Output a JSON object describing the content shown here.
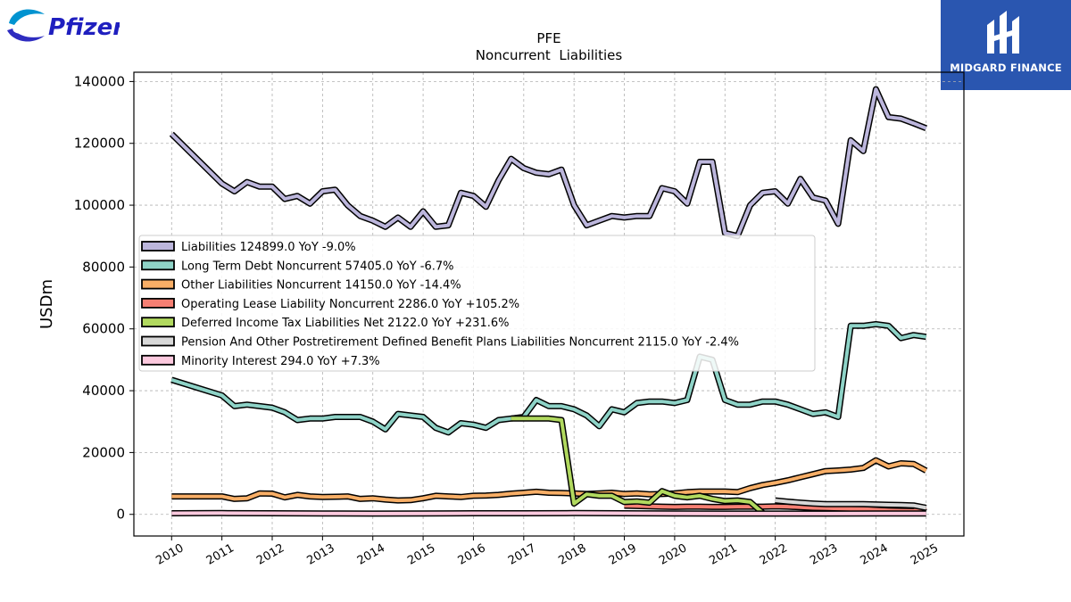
{
  "brand": {
    "company_logo_text": "Pfizer",
    "partner_logo_text": "MIDGARD FINANCE"
  },
  "chart_data": {
    "type": "line",
    "title": "PFE",
    "subtitle": "Noncurrent  Liabilities",
    "xlabel": "",
    "ylabel": "USDm",
    "xlim": [
      2009.25,
      2025.75
    ],
    "ylim": [
      -7000,
      143000
    ],
    "grid": true,
    "legend_position": "center-left",
    "x_ticks": [
      2010,
      2011,
      2012,
      2013,
      2014,
      2015,
      2016,
      2017,
      2018,
      2019,
      2020,
      2021,
      2022,
      2023,
      2024,
      2025
    ],
    "y_ticks": [
      0,
      20000,
      40000,
      60000,
      80000,
      100000,
      120000,
      140000
    ],
    "series": [
      {
        "name": "Liabilities  124899.0 YoY -9.0%",
        "color": "#bcb6dc",
        "points": [
          [
            2010.0,
            123000
          ],
          [
            2011.0,
            107000
          ],
          [
            2011.25,
            104500
          ],
          [
            2011.5,
            107500
          ],
          [
            2011.75,
            106000
          ],
          [
            2012.0,
            106000
          ],
          [
            2012.25,
            102000
          ],
          [
            2012.5,
            103000
          ],
          [
            2012.75,
            100500
          ],
          [
            2013.0,
            104500
          ],
          [
            2013.25,
            105000
          ],
          [
            2013.5,
            100000
          ],
          [
            2013.75,
            96500
          ],
          [
            2014.0,
            95000
          ],
          [
            2014.25,
            93000
          ],
          [
            2014.5,
            96000
          ],
          [
            2014.75,
            93000
          ],
          [
            2015.0,
            98000
          ],
          [
            2015.25,
            93000
          ],
          [
            2015.5,
            93500
          ],
          [
            2015.75,
            104000
          ],
          [
            2016.0,
            103000
          ],
          [
            2016.25,
            99500
          ],
          [
            2016.5,
            108000
          ],
          [
            2016.75,
            115000
          ],
          [
            2017.0,
            112000
          ],
          [
            2017.25,
            110500
          ],
          [
            2017.5,
            110000
          ],
          [
            2017.75,
            111500
          ],
          [
            2018.0,
            100000
          ],
          [
            2018.25,
            93500
          ],
          [
            2018.5,
            95000
          ],
          [
            2018.75,
            96500
          ],
          [
            2019.0,
            96000
          ],
          [
            2019.25,
            96500
          ],
          [
            2019.5,
            96500
          ],
          [
            2019.75,
            105500
          ],
          [
            2020.0,
            104500
          ],
          [
            2020.25,
            100500
          ],
          [
            2020.5,
            114000
          ],
          [
            2020.75,
            114000
          ],
          [
            2021.0,
            91000
          ],
          [
            2021.25,
            90000
          ],
          [
            2021.5,
            100000
          ],
          [
            2021.75,
            104000
          ],
          [
            2022.0,
            104500
          ],
          [
            2022.25,
            100500
          ],
          [
            2022.5,
            108500
          ],
          [
            2022.75,
            102500
          ],
          [
            2023.0,
            101500
          ],
          [
            2023.25,
            94000
          ],
          [
            2023.5,
            121000
          ],
          [
            2023.75,
            117500
          ],
          [
            2024.0,
            137500
          ],
          [
            2024.25,
            128500
          ],
          [
            2024.5,
            128000
          ],
          [
            2024.75,
            126500
          ],
          [
            2025.0,
            124899
          ]
        ]
      },
      {
        "name": "Long Term Debt Noncurrent  57405.0 YoY -6.7%",
        "color": "#8ed3c7",
        "points": [
          [
            2010.0,
            43500
          ],
          [
            2011.0,
            38500
          ],
          [
            2011.25,
            35000
          ],
          [
            2011.5,
            35500
          ],
          [
            2011.75,
            35000
          ],
          [
            2012.0,
            34500
          ],
          [
            2012.25,
            33000
          ],
          [
            2012.5,
            30500
          ],
          [
            2012.75,
            31000
          ],
          [
            2013.0,
            31000
          ],
          [
            2013.25,
            31500
          ],
          [
            2013.5,
            31500
          ],
          [
            2013.75,
            31500
          ],
          [
            2014.0,
            30000
          ],
          [
            2014.25,
            27500
          ],
          [
            2014.5,
            32500
          ],
          [
            2014.75,
            32000
          ],
          [
            2015.0,
            31500
          ],
          [
            2015.25,
            28000
          ],
          [
            2015.5,
            26500
          ],
          [
            2015.75,
            29500
          ],
          [
            2016.0,
            29000
          ],
          [
            2016.25,
            28000
          ],
          [
            2016.5,
            30500
          ],
          [
            2016.75,
            31000
          ],
          [
            2017.0,
            31500
          ],
          [
            2017.25,
            37000
          ],
          [
            2017.5,
            35000
          ],
          [
            2017.75,
            35000
          ],
          [
            2018.0,
            34000
          ],
          [
            2018.25,
            32000
          ],
          [
            2018.5,
            28500
          ],
          [
            2018.75,
            34000
          ],
          [
            2019.0,
            33000
          ],
          [
            2019.25,
            36000
          ],
          [
            2019.5,
            36500
          ],
          [
            2019.75,
            36500
          ],
          [
            2020.0,
            36000
          ],
          [
            2020.25,
            37000
          ],
          [
            2020.5,
            51000
          ],
          [
            2020.75,
            50000
          ],
          [
            2021.0,
            37000
          ],
          [
            2021.25,
            35500
          ],
          [
            2021.5,
            35500
          ],
          [
            2021.75,
            36500
          ],
          [
            2022.0,
            36500
          ],
          [
            2022.25,
            35500
          ],
          [
            2022.5,
            34000
          ],
          [
            2022.75,
            32500
          ],
          [
            2023.0,
            33000
          ],
          [
            2023.25,
            31500
          ],
          [
            2023.5,
            61000
          ],
          [
            2023.75,
            61000
          ],
          [
            2024.0,
            61500
          ],
          [
            2024.25,
            61000
          ],
          [
            2024.5,
            57000
          ],
          [
            2024.75,
            58000
          ],
          [
            2025.0,
            57405
          ]
        ]
      },
      {
        "name": "Other Liabilities Noncurrent  14150.0 YoY -14.4%",
        "color": "#f8ae66",
        "points": [
          [
            2010.0,
            5800
          ],
          [
            2011.0,
            5800
          ],
          [
            2011.25,
            5000
          ],
          [
            2011.5,
            5200
          ],
          [
            2011.75,
            6800
          ],
          [
            2012.0,
            6700
          ],
          [
            2012.25,
            5500
          ],
          [
            2012.5,
            6300
          ],
          [
            2012.75,
            5800
          ],
          [
            2013.0,
            5600
          ],
          [
            2013.25,
            5700
          ],
          [
            2013.5,
            5800
          ],
          [
            2013.75,
            5000
          ],
          [
            2014.0,
            5200
          ],
          [
            2014.25,
            4800
          ],
          [
            2014.5,
            4500
          ],
          [
            2014.75,
            4600
          ],
          [
            2015.0,
            5200
          ],
          [
            2015.25,
            6000
          ],
          [
            2015.5,
            5800
          ],
          [
            2015.75,
            5600
          ],
          [
            2016.0,
            6000
          ],
          [
            2016.25,
            6100
          ],
          [
            2016.5,
            6300
          ],
          [
            2016.75,
            6700
          ],
          [
            2017.0,
            7000
          ],
          [
            2017.25,
            7300
          ],
          [
            2017.5,
            7000
          ],
          [
            2017.75,
            6900
          ],
          [
            2018.0,
            6800
          ],
          [
            2018.25,
            6600
          ],
          [
            2018.5,
            6800
          ],
          [
            2018.75,
            7000
          ],
          [
            2019.0,
            6600
          ],
          [
            2019.25,
            6800
          ],
          [
            2019.5,
            6500
          ],
          [
            2019.75,
            6600
          ],
          [
            2020.0,
            6800
          ],
          [
            2020.25,
            7200
          ],
          [
            2020.5,
            7400
          ],
          [
            2020.75,
            7400
          ],
          [
            2021.0,
            7400
          ],
          [
            2021.25,
            7200
          ],
          [
            2021.5,
            8500
          ],
          [
            2021.75,
            9500
          ],
          [
            2022.0,
            10200
          ],
          [
            2022.25,
            11000
          ],
          [
            2022.5,
            12000
          ],
          [
            2022.75,
            13000
          ],
          [
            2023.0,
            14000
          ],
          [
            2023.25,
            14200
          ],
          [
            2023.5,
            14500
          ],
          [
            2023.75,
            15000
          ],
          [
            2024.0,
            17500
          ],
          [
            2024.25,
            15500
          ],
          [
            2024.5,
            16500
          ],
          [
            2024.75,
            16300
          ],
          [
            2025.0,
            14150
          ]
        ]
      },
      {
        "name": "Operating Lease Liability Noncurrent  2286.0 YoY +105.2%",
        "color": "#f67f73",
        "points": [
          [
            2019.0,
            2800
          ],
          [
            2019.25,
            2700
          ],
          [
            2019.5,
            2600
          ],
          [
            2019.75,
            2500
          ],
          [
            2020.0,
            2400
          ],
          [
            2020.25,
            2500
          ],
          [
            2020.5,
            2500
          ],
          [
            2020.75,
            2400
          ],
          [
            2021.0,
            2400
          ],
          [
            2021.25,
            2500
          ],
          [
            2021.5,
            2500
          ],
          [
            2021.75,
            2500
          ],
          [
            2022.0,
            2600
          ],
          [
            2022.25,
            2500
          ],
          [
            2022.5,
            2300
          ],
          [
            2022.75,
            2100
          ],
          [
            2023.0,
            2000
          ],
          [
            2023.25,
            1900
          ],
          [
            2023.5,
            1800
          ],
          [
            2023.75,
            1700
          ],
          [
            2024.0,
            1500
          ],
          [
            2024.25,
            1300
          ],
          [
            2024.5,
            1200
          ],
          [
            2024.75,
            1100
          ],
          [
            2025.0,
            2286
          ]
        ]
      },
      {
        "name": "Deferred Income Tax Liabilities Net  2122.0 YoY +231.6%",
        "color": "#b1d95f",
        "points": [
          [
            2016.75,
            31000
          ],
          [
            2017.0,
            31000
          ],
          [
            2017.25,
            31000
          ],
          [
            2017.5,
            31000
          ],
          [
            2017.75,
            30500
          ],
          [
            2018.0,
            3500
          ],
          [
            2018.25,
            6500
          ],
          [
            2018.5,
            6000
          ],
          [
            2018.75,
            6000
          ],
          [
            2019.0,
            4000
          ],
          [
            2019.25,
            4200
          ],
          [
            2019.5,
            3800
          ],
          [
            2019.75,
            7500
          ],
          [
            2020.0,
            6000
          ],
          [
            2020.25,
            5500
          ],
          [
            2020.5,
            6000
          ],
          [
            2020.75,
            5000
          ],
          [
            2021.0,
            4300
          ],
          [
            2021.25,
            4500
          ],
          [
            2021.5,
            4000
          ],
          [
            2021.75,
            500
          ]
        ]
      },
      {
        "name": "Pension And Other Postretirement Defined Benefit Plans Liabilities Noncurrent  2115.0 YoY -2.4%",
        "color": "#d8d8d8",
        "points": [
          [
            2022.0,
            4500
          ],
          [
            2022.25,
            4100
          ],
          [
            2022.5,
            3800
          ],
          [
            2022.75,
            3500
          ],
          [
            2023.0,
            3300
          ],
          [
            2023.25,
            3300
          ],
          [
            2023.5,
            3300
          ],
          [
            2023.75,
            3300
          ],
          [
            2024.0,
            3200
          ],
          [
            2024.25,
            3100
          ],
          [
            2024.5,
            3000
          ],
          [
            2024.75,
            2900
          ],
          [
            2025.0,
            2115
          ]
        ]
      },
      {
        "name": "Minority Interest  294.0 YoY +7.3%",
        "color": "#fcc9de",
        "points": [
          [
            2010.0,
            350
          ],
          [
            2011.0,
            400
          ],
          [
            2012.0,
            350
          ],
          [
            2013.0,
            300
          ],
          [
            2014.0,
            250
          ],
          [
            2015.0,
            300
          ],
          [
            2016.0,
            350
          ],
          [
            2017.0,
            350
          ],
          [
            2018.0,
            400
          ],
          [
            2019.0,
            350
          ],
          [
            2020.0,
            300
          ],
          [
            2021.0,
            250
          ],
          [
            2022.0,
            250
          ],
          [
            2023.0,
            250
          ],
          [
            2024.0,
            260
          ],
          [
            2025.0,
            294
          ]
        ]
      }
    ]
  }
}
